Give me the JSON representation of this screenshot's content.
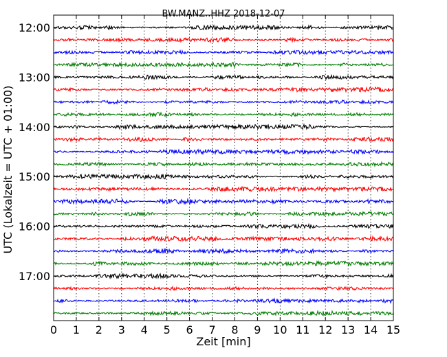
{
  "chart_data": {
    "type": "line",
    "title": "BW.MANZ..HHZ 2018-12-07",
    "xlabel": "Zeit  [min]",
    "ylabel": "UTC (Lokalzeit = UTC + 01:00)",
    "xlim": [
      0,
      15
    ],
    "x_ticks": [
      0,
      1,
      2,
      3,
      4,
      5,
      6,
      7,
      8,
      9,
      10,
      11,
      12,
      13,
      14,
      15
    ],
    "x_tick_labels": [
      "0",
      "1",
      "2",
      "3",
      "4",
      "5",
      "6",
      "7",
      "8",
      "9",
      "10",
      "11",
      "12",
      "13",
      "14",
      "15"
    ],
    "y_tick_labels": [
      "12:00",
      "13:00",
      "14:00",
      "15:00",
      "16:00",
      "17:00"
    ],
    "vertical_grid": true,
    "trace_interval_minutes": 15,
    "colors": [
      "#000000",
      "#ff0000",
      "#0000ff",
      "#007f00"
    ],
    "traces": [
      {
        "start": "12:00"
      },
      {
        "start": "12:15"
      },
      {
        "start": "12:30"
      },
      {
        "start": "12:45"
      },
      {
        "start": "13:00"
      },
      {
        "start": "13:15"
      },
      {
        "start": "13:30"
      },
      {
        "start": "13:45"
      },
      {
        "start": "14:00"
      },
      {
        "start": "14:15"
      },
      {
        "start": "14:30"
      },
      {
        "start": "14:45"
      },
      {
        "start": "15:00"
      },
      {
        "start": "15:15"
      },
      {
        "start": "15:30"
      },
      {
        "start": "15:45"
      },
      {
        "start": "16:00"
      },
      {
        "start": "16:15"
      },
      {
        "start": "16:30"
      },
      {
        "start": "16:45"
      },
      {
        "start": "17:00"
      },
      {
        "start": "17:15"
      },
      {
        "start": "17:30"
      },
      {
        "start": "17:45"
      }
    ]
  }
}
